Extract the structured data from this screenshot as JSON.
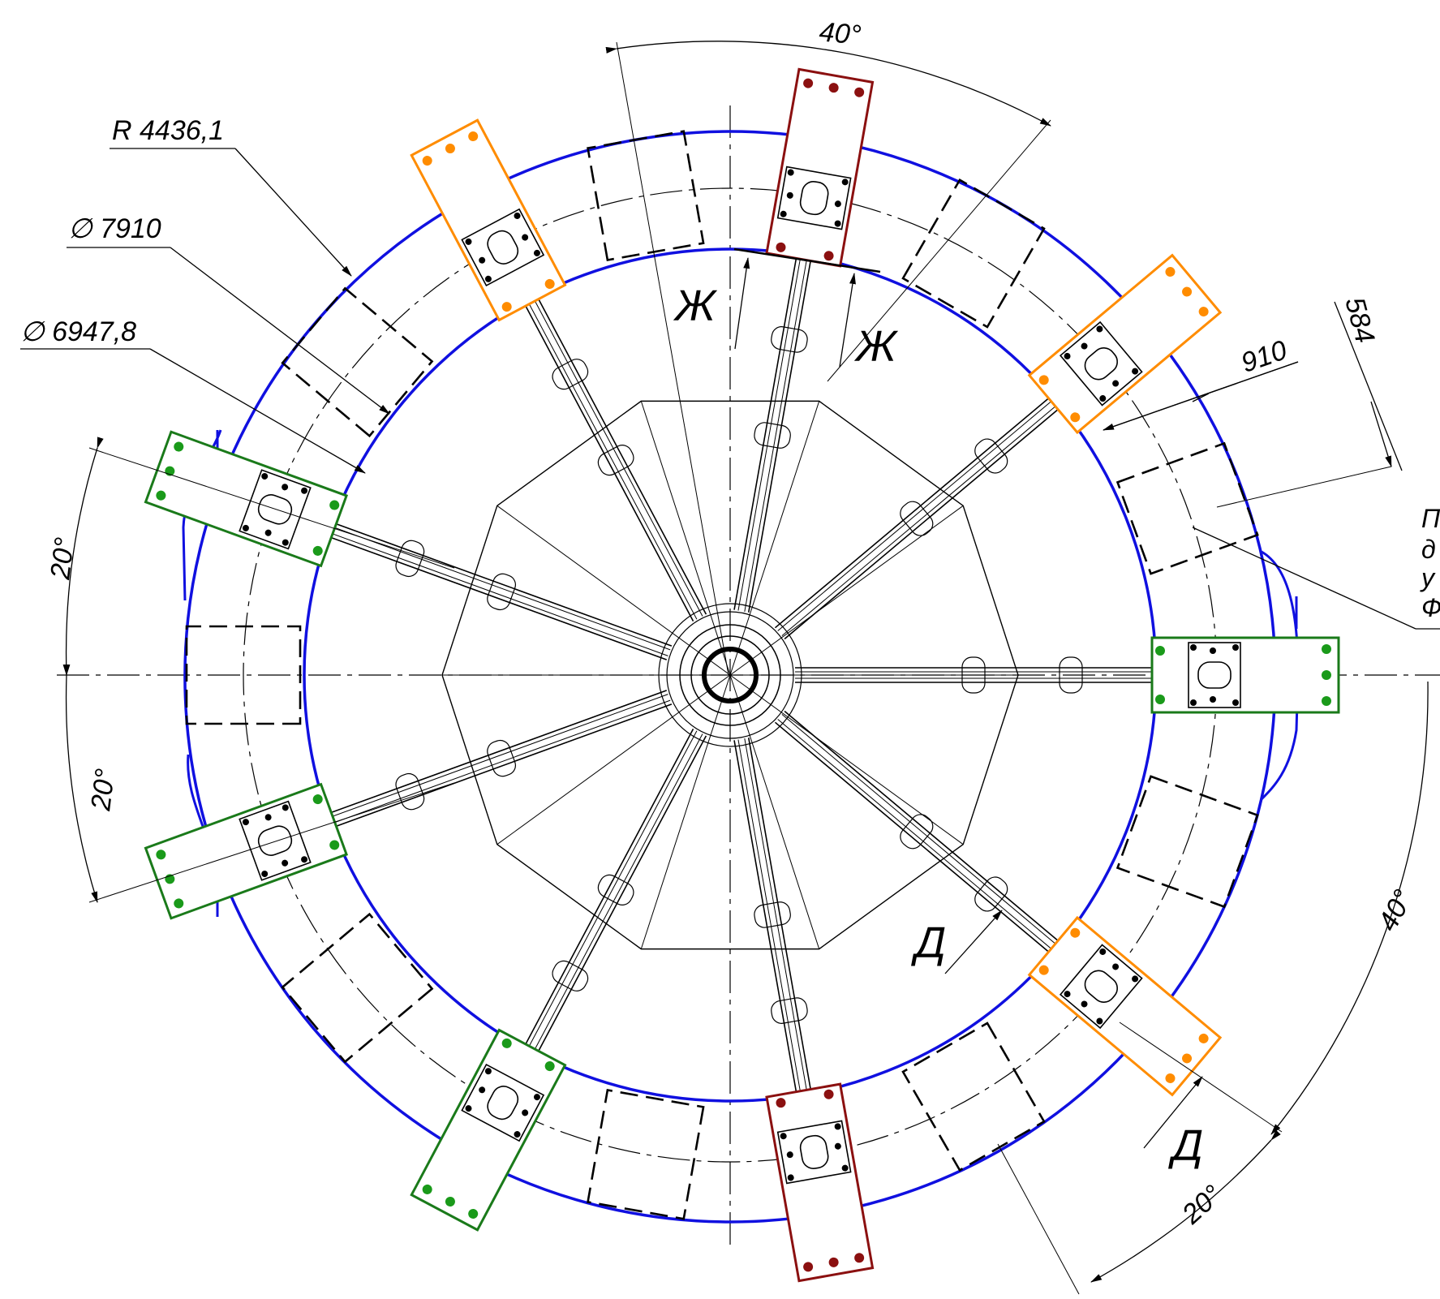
{
  "drawing": {
    "labels": {
      "r_outer": "R 4436,1",
      "d_mid": "∅ 7910",
      "d_inner": "∅ 6947,8",
      "angle_top": "40°",
      "angle_left_upper": "20°",
      "angle_left_lower": "20°",
      "angle_right": "40°",
      "angle_bottom_right": "20°",
      "dim_910": "910",
      "dim_584": "584",
      "view_zh_1": "Ж",
      "view_zh_2": "Ж",
      "view_d_1": "Д",
      "view_d_2": "Д",
      "note_line1": "П",
      "note_line2": "д",
      "note_line3": "у",
      "note_line4": "Ф"
    },
    "colors": {
      "outline": "#1010e0",
      "green": "#1a7a1a",
      "orange": "#ff8c00",
      "darkred": "#8b1010",
      "dot_green": "#1a9a1a",
      "dot_orange": "#ff8c00",
      "dot_red": "#8b1010",
      "ink": "#000000"
    },
    "spoke_groups": {
      "green": "green supports",
      "orange": "orange supports",
      "darkred": "dark red supports"
    }
  }
}
